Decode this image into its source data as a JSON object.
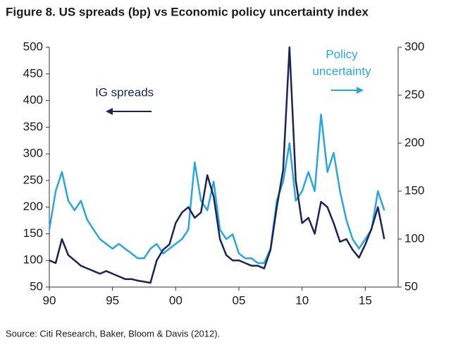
{
  "chart_data": {
    "type": "line",
    "title": "Figure 8. US spreads (bp) vs Economic policy uncertainty index",
    "source": "Source: Citi Research, Baker, Bloom & Davis (2012).",
    "annotations": [
      "IG spreads",
      "Policy",
      "uncertainty"
    ],
    "x": [
      1990,
      1990.5,
      1991,
      1991.5,
      1992,
      1992.5,
      1993,
      1993.5,
      1994,
      1994.5,
      1995,
      1995.5,
      1996,
      1996.5,
      1997,
      1997.5,
      1998,
      1998.5,
      1999,
      1999.5,
      2000,
      2000.5,
      2001,
      2001.5,
      2002,
      2002.5,
      2003,
      2003.5,
      2004,
      2004.5,
      2005,
      2005.5,
      2006,
      2006.5,
      2007,
      2007.5,
      2008,
      2008.5,
      2009,
      2009.5,
      2010,
      2010.5,
      2011,
      2011.5,
      2012,
      2012.5,
      2013,
      2013.5,
      2014,
      2014.5,
      2015,
      2015.5,
      2016,
      2016.5
    ],
    "xlim": [
      1990,
      2017.6
    ],
    "xticks": [
      {
        "value": 1990,
        "label": "90"
      },
      {
        "value": 1995,
        "label": "95"
      },
      {
        "value": 2000,
        "label": "00"
      },
      {
        "value": 2005,
        "label": "05"
      },
      {
        "value": 2010,
        "label": "10"
      },
      {
        "value": 2015,
        "label": "15"
      }
    ],
    "ylim": [
      50,
      500
    ],
    "yticks": [
      50,
      100,
      150,
      200,
      250,
      300,
      350,
      400,
      450,
      500
    ],
    "y2lim": [
      50,
      300
    ],
    "y2ticks": [
      50,
      100,
      150,
      200,
      250,
      300
    ],
    "series": [
      {
        "name": "IG spreads",
        "color": "#1b2459",
        "values": [
          100,
          95,
          140,
          110,
          100,
          90,
          85,
          80,
          75,
          80,
          75,
          70,
          65,
          65,
          62,
          60,
          58,
          100,
          120,
          130,
          170,
          190,
          200,
          180,
          190,
          260,
          220,
          140,
          110,
          100,
          100,
          95,
          90,
          90,
          85,
          120,
          200,
          270,
          500,
          250,
          170,
          180,
          150,
          210,
          200,
          170,
          135,
          140,
          120,
          105,
          130,
          160,
          200,
          140
        ]
      },
      {
        "name": "Policy uncertainty",
        "color": "#2aa6de",
        "axis": "y2",
        "values": [
          110,
          150,
          170,
          140,
          130,
          140,
          120,
          110,
          100,
          95,
          90,
          95,
          90,
          85,
          80,
          80,
          90,
          95,
          85,
          90,
          95,
          100,
          110,
          180,
          140,
          130,
          160,
          110,
          100,
          105,
          85,
          80,
          80,
          75,
          75,
          90,
          140,
          160,
          200,
          140,
          150,
          170,
          150,
          230,
          170,
          190,
          150,
          120,
          100,
          90,
          100,
          110,
          150,
          130
        ]
      }
    ]
  }
}
